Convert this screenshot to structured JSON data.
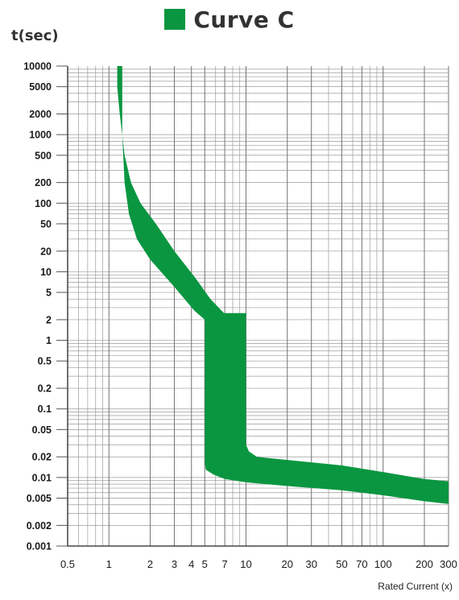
{
  "chart_data": {
    "type": "area",
    "title": "Curve C",
    "ylabel": "t(sec)",
    "xlabel": "Rated Current  (x)",
    "x_scale": "log",
    "y_scale": "log",
    "xlim": [
      0.5,
      300
    ],
    "ylim": [
      0.001,
      10000
    ],
    "x_ticks": [
      "0.5",
      "1",
      "2",
      "3",
      "4",
      "5",
      "7",
      "10",
      "20",
      "30",
      "50",
      "70",
      "100",
      "200",
      "300"
    ],
    "y_ticks": [
      "10000",
      "5000",
      "2000",
      "1000",
      "500",
      "200",
      "100",
      "50",
      "20",
      "10",
      "5",
      "2",
      "1",
      "0.5",
      "0.2",
      "0.1",
      "0.05",
      "0.02",
      "0.01",
      "0.005",
      "0.002",
      "0.001"
    ],
    "grid": true,
    "legend": "top-center",
    "colors": {
      "band": "#0a9640",
      "grid": "#9a9a9a",
      "axis": "#222222"
    },
    "series": [
      {
        "name": "Curve C",
        "upper_bound": [
          [
            1.15,
            10000
          ],
          [
            1.15,
            5000
          ],
          [
            1.2,
            2000
          ],
          [
            1.3,
            500
          ],
          [
            1.45,
            200
          ],
          [
            1.7,
            100
          ],
          [
            2.2,
            50
          ],
          [
            3,
            20
          ],
          [
            4.3,
            8
          ],
          [
            5.5,
            4
          ],
          [
            6.9,
            2.5
          ],
          [
            10,
            2.5
          ],
          [
            10,
            0.03
          ],
          [
            10.5,
            0.024
          ],
          [
            12,
            0.02
          ],
          [
            20,
            0.018
          ],
          [
            50,
            0.015
          ],
          [
            100,
            0.012
          ],
          [
            200,
            0.0095
          ],
          [
            300,
            0.0088
          ]
        ],
        "lower_bound": [
          [
            300,
            0.0041
          ],
          [
            200,
            0.0045
          ],
          [
            100,
            0.0055
          ],
          [
            50,
            0.0065
          ],
          [
            20,
            0.0075
          ],
          [
            10,
            0.0085
          ],
          [
            7,
            0.0095
          ],
          [
            5.8,
            0.011
          ],
          [
            5.1,
            0.013
          ],
          [
            5,
            0.016
          ],
          [
            5,
            2
          ],
          [
            4.2,
            2.7
          ],
          [
            3,
            6
          ],
          [
            2,
            15
          ],
          [
            1.6,
            30
          ],
          [
            1.4,
            70
          ],
          [
            1.3,
            200
          ],
          [
            1.25,
            1000
          ],
          [
            1.25,
            5000
          ],
          [
            1.25,
            10000
          ]
        ]
      }
    ]
  }
}
